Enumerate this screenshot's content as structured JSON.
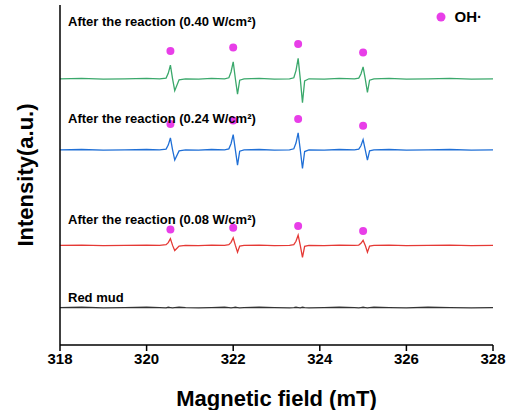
{
  "chart_data": {
    "type": "line",
    "x_label": "Magnetic field (mT)",
    "y_label": "Intensity(a.u.)",
    "x": [
      318,
      318.5,
      319,
      319.5,
      320,
      320.3,
      320.45,
      320.5,
      320.55,
      320.6,
      320.65,
      320.75,
      320.9,
      321.2,
      321.5,
      321.8,
      321.9,
      321.95,
      322.0,
      322.05,
      322.1,
      322.15,
      322.25,
      322.6,
      322.95,
      323.3,
      323.4,
      323.45,
      323.5,
      323.55,
      323.6,
      323.65,
      323.75,
      324.1,
      324.45,
      324.8,
      324.9,
      324.95,
      325.0,
      325.05,
      325.1,
      325.15,
      325.25,
      325.6,
      326,
      326.5,
      327,
      327.5,
      328
    ],
    "series": [
      {
        "name": "After the reaction (0.40 W/cm²)",
        "color": "#3aa86b",
        "values": [
          7.83,
          7.84,
          7.82,
          7.83,
          7.84,
          7.83,
          7.85,
          7.99,
          8.23,
          7.83,
          7.48,
          7.8,
          7.83,
          7.82,
          7.84,
          7.83,
          7.86,
          8.03,
          8.33,
          7.83,
          7.38,
          7.79,
          7.83,
          7.84,
          7.82,
          7.83,
          7.86,
          8.07,
          8.43,
          7.82,
          7.13,
          7.77,
          7.83,
          7.82,
          7.84,
          7.83,
          7.85,
          7.97,
          8.18,
          7.83,
          7.43,
          7.79,
          7.83,
          7.84,
          7.82,
          7.83,
          7.84,
          7.82,
          7.83
        ]
      },
      {
        "name": "After the reaction (0.24 W/cm²)",
        "color": "#1f6fd6",
        "values": [
          5.74,
          5.75,
          5.73,
          5.74,
          5.75,
          5.74,
          5.76,
          5.88,
          6.09,
          5.74,
          5.44,
          5.71,
          5.74,
          5.73,
          5.75,
          5.74,
          5.77,
          5.92,
          6.19,
          5.74,
          5.29,
          5.7,
          5.74,
          5.75,
          5.73,
          5.74,
          5.77,
          5.94,
          6.24,
          5.73,
          5.19,
          5.69,
          5.74,
          5.73,
          5.75,
          5.74,
          5.76,
          5.86,
          6.04,
          5.74,
          5.44,
          5.71,
          5.74,
          5.75,
          5.73,
          5.74,
          5.75,
          5.73,
          5.74
        ]
      },
      {
        "name": "After the reaction (0.08 W/cm²)",
        "color": "#e53935",
        "values": [
          2.93,
          2.94,
          2.92,
          2.93,
          2.94,
          2.93,
          2.95,
          3.01,
          3.13,
          2.93,
          2.78,
          2.91,
          2.93,
          2.92,
          2.94,
          2.93,
          2.95,
          3.02,
          3.15,
          2.93,
          2.73,
          2.91,
          2.93,
          2.94,
          2.92,
          2.93,
          2.95,
          3.05,
          3.23,
          2.92,
          2.58,
          2.9,
          2.93,
          2.92,
          2.94,
          2.93,
          2.94,
          2.99,
          3.08,
          2.93,
          2.73,
          2.91,
          2.93,
          2.94,
          2.92,
          2.93,
          2.94,
          2.92,
          2.93
        ]
      },
      {
        "name": "Red mud",
        "color": "#333333",
        "values": [
          1.1,
          1.11,
          1.09,
          1.1,
          1.11,
          1.1,
          1.09,
          1.11,
          1.1,
          1.09,
          1.1,
          1.11,
          1.1,
          1.09,
          1.1,
          1.11,
          1.1,
          1.09,
          1.1,
          1.11,
          1.1,
          1.09,
          1.1,
          1.11,
          1.1,
          1.09,
          1.1,
          1.11,
          1.1,
          1.09,
          1.11,
          1.1,
          1.09,
          1.1,
          1.11,
          1.1,
          1.09,
          1.1,
          1.11,
          1.1,
          1.09,
          1.1,
          1.11,
          1.1,
          1.09,
          1.11,
          1.1,
          1.09,
          1.1
        ]
      },
      {
        "name": "OH·",
        "type": "scatter",
        "color": "#e83ee8",
        "marker": "circle",
        "x": [
          320.55,
          322.0,
          323.5,
          325.0,
          320.55,
          322.0,
          323.5,
          325.0,
          320.55,
          322.0,
          323.5,
          325.0
        ],
        "values": [
          8.65,
          8.75,
          8.85,
          8.6,
          6.5,
          6.6,
          6.65,
          6.45,
          3.4,
          3.45,
          3.5,
          3.35
        ]
      }
    ],
    "xlim": [
      318,
      328
    ],
    "xticks": [
      318,
      320,
      322,
      324,
      326,
      328
    ],
    "ylim": [
      0,
      10
    ],
    "tick_labels": "x",
    "grid": false,
    "legend": "upper right"
  }
}
